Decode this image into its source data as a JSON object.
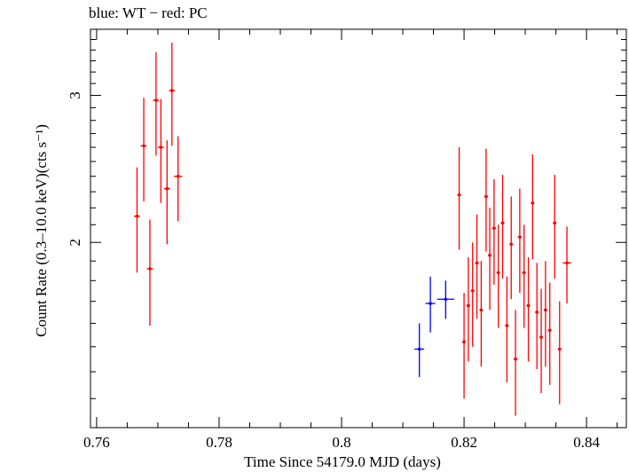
{
  "chart_data": {
    "type": "scatter",
    "title": "blue: WT − red: PC",
    "xlabel": "Time Since 54179.0 MJD (days)",
    "ylabel": "Count Rate (0.3–10.0 keV)(cts s⁻¹)",
    "xlim": [
      0.759,
      0.8465
    ],
    "ylim": [
      1.2,
      3.6
    ],
    "log_y": true,
    "x_ticks": [
      0.76,
      0.78,
      0.8,
      0.82,
      0.84
    ],
    "x_tick_labels": [
      "0.76",
      "0.78",
      "0.8",
      "0.82",
      "0.84"
    ],
    "y_ticks": [
      2,
      3
    ],
    "y_tick_labels": [
      "2",
      "3"
    ],
    "grid": false,
    "series": [
      {
        "name": "WT",
        "color": "#0000ff",
        "points": [
          {
            "x": 0.8127,
            "xerr": 0.0008,
            "y": 1.49,
            "yerr": 0.11
          },
          {
            "x": 0.8145,
            "xerr": 0.0008,
            "y": 1.69,
            "yerr": 0.13
          },
          {
            "x": 0.817,
            "xerr": 0.0014,
            "y": 1.71,
            "yerr": 0.09
          }
        ]
      },
      {
        "name": "PC",
        "color": "#ff0000",
        "points": [
          {
            "x": 0.7666,
            "xerr": 0.0005,
            "y": 2.15,
            "yerr": 0.31
          },
          {
            "x": 0.7677,
            "xerr": 0.0005,
            "y": 2.61,
            "yerr": 0.37
          },
          {
            "x": 0.7687,
            "xerr": 0.0005,
            "y": 1.86,
            "yerr": 0.27
          },
          {
            "x": 0.7697,
            "xerr": 0.0005,
            "y": 2.96,
            "yerr": 0.42
          },
          {
            "x": 0.7705,
            "xerr": 0.0005,
            "y": 2.6,
            "yerr": 0.37
          },
          {
            "x": 0.7715,
            "xerr": 0.0005,
            "y": 2.32,
            "yerr": 0.33
          },
          {
            "x": 0.7723,
            "xerr": 0.0005,
            "y": 3.04,
            "yerr": 0.43
          },
          {
            "x": 0.7733,
            "xerr": 0.0007,
            "y": 2.4,
            "yerr": 0.28
          },
          {
            "x": 0.8192,
            "xerr": 0.0003,
            "y": 2.28,
            "yerr": 0.32
          },
          {
            "x": 0.82,
            "xerr": 0.0003,
            "y": 1.52,
            "yerr": 0.22
          },
          {
            "x": 0.8207,
            "xerr": 0.0003,
            "y": 1.68,
            "yerr": 0.24
          },
          {
            "x": 0.8214,
            "xerr": 0.0003,
            "y": 1.75,
            "yerr": 0.25
          },
          {
            "x": 0.8221,
            "xerr": 0.0003,
            "y": 1.89,
            "yerr": 0.27
          },
          {
            "x": 0.8228,
            "xerr": 0.0003,
            "y": 1.66,
            "yerr": 0.24
          },
          {
            "x": 0.8236,
            "xerr": 0.0003,
            "y": 2.27,
            "yerr": 0.32
          },
          {
            "x": 0.8242,
            "xerr": 0.0003,
            "y": 1.93,
            "yerr": 0.27
          },
          {
            "x": 0.8249,
            "xerr": 0.0003,
            "y": 2.08,
            "yerr": 0.3
          },
          {
            "x": 0.8256,
            "xerr": 0.0003,
            "y": 1.84,
            "yerr": 0.26
          },
          {
            "x": 0.8263,
            "xerr": 0.0003,
            "y": 2.11,
            "yerr": 0.3
          },
          {
            "x": 0.827,
            "xerr": 0.0003,
            "y": 1.59,
            "yerr": 0.23
          },
          {
            "x": 0.8277,
            "xerr": 0.0003,
            "y": 1.99,
            "yerr": 0.28
          },
          {
            "x": 0.8284,
            "xerr": 0.0003,
            "y": 1.45,
            "yerr": 0.21
          },
          {
            "x": 0.8291,
            "xerr": 0.0003,
            "y": 2.03,
            "yerr": 0.29
          },
          {
            "x": 0.8298,
            "xerr": 0.0003,
            "y": 1.84,
            "yerr": 0.26
          },
          {
            "x": 0.8305,
            "xerr": 0.0003,
            "y": 1.68,
            "yerr": 0.24
          },
          {
            "x": 0.8312,
            "xerr": 0.0003,
            "y": 2.23,
            "yerr": 0.32
          },
          {
            "x": 0.8319,
            "xerr": 0.0003,
            "y": 1.65,
            "yerr": 0.24
          },
          {
            "x": 0.8326,
            "xerr": 0.0003,
            "y": 1.54,
            "yerr": 0.22
          },
          {
            "x": 0.8333,
            "xerr": 0.0003,
            "y": 1.66,
            "yerr": 0.24
          },
          {
            "x": 0.834,
            "xerr": 0.0003,
            "y": 1.57,
            "yerr": 0.22
          },
          {
            "x": 0.8348,
            "xerr": 0.0003,
            "y": 2.11,
            "yerr": 0.3
          },
          {
            "x": 0.8356,
            "xerr": 0.0003,
            "y": 1.49,
            "yerr": 0.21
          },
          {
            "x": 0.8368,
            "xerr": 0.0007,
            "y": 1.89,
            "yerr": 0.2
          }
        ]
      }
    ]
  }
}
